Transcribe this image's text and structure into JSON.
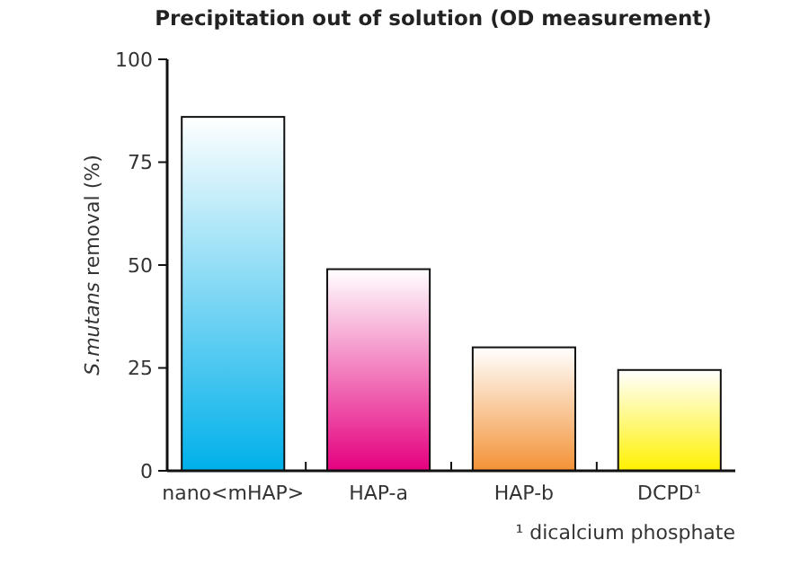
{
  "chart_data": {
    "type": "bar",
    "title": "Precipitation out of solution (OD measurement)",
    "ylabel": "S.mutans removal (%)",
    "categories": [
      "nano<mHAP>",
      "HAP-a",
      "HAP-b",
      "DCPD¹"
    ],
    "values": [
      86,
      49,
      30,
      24.5
    ],
    "colors": [
      "#00b0ea",
      "#e5007f",
      "#f39236",
      "#fff100"
    ],
    "ylim": [
      0,
      100
    ],
    "yticks": [
      0,
      25,
      50,
      75,
      100
    ],
    "grid": false,
    "annotations": [
      "¹ dicalcium phosphate"
    ]
  }
}
